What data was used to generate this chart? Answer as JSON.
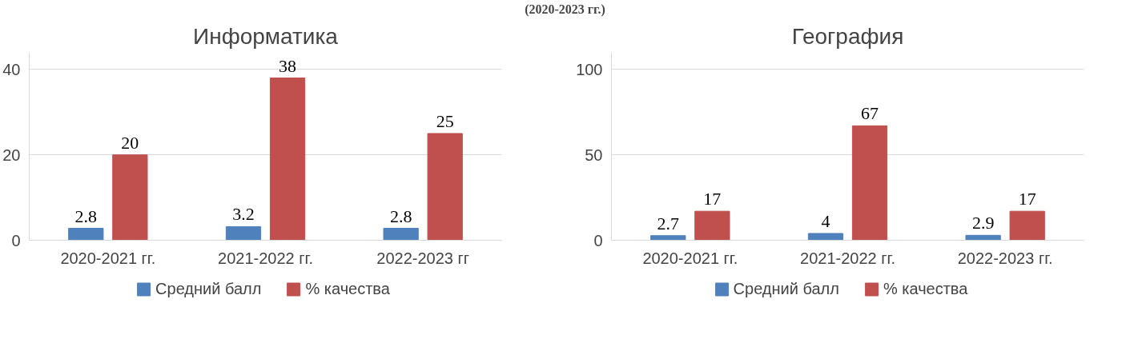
{
  "chart_data": [
    {
      "type": "bar",
      "title": "Информатика",
      "annotations": [
        "(2020-2023 гг.)"
      ],
      "categories": [
        "2020-2021 гг.",
        "2021-2022 гг.",
        "2022-2023 гг"
      ],
      "series": [
        {
          "name": "Средний балл",
          "color": "#4f81bd",
          "values": [
            2.8,
            3.2,
            2.8
          ]
        },
        {
          "name": "% качества",
          "color": "#c0504d",
          "values": [
            20,
            38,
            25
          ]
        }
      ],
      "ylim": [
        0,
        44
      ],
      "yticks": [
        0,
        20,
        40
      ],
      "grid": "y",
      "legend": "bottom",
      "data_labels": true
    },
    {
      "type": "bar",
      "title": "География",
      "categories": [
        "2020-2021 гг.",
        "2021-2022 гг.",
        "2022-2023 гг."
      ],
      "series": [
        {
          "name": "Средний балл",
          "color": "#4f81bd",
          "values": [
            2.7,
            4,
            2.9
          ]
        },
        {
          "name": "% качества",
          "color": "#c0504d",
          "values": [
            17,
            67,
            17
          ]
        }
      ],
      "ylim": [
        0,
        110
      ],
      "yticks": [
        0,
        50,
        100
      ],
      "grid": "y",
      "legend": "bottom",
      "data_labels": true
    }
  ]
}
